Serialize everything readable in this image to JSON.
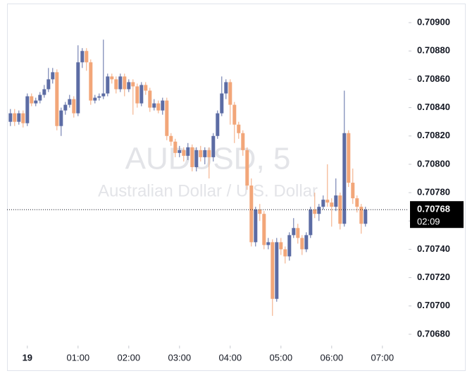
{
  "chart_data": {
    "type": "candlestick",
    "watermark": [
      "AUDUSD, 5",
      "Australian Dollar / U.S. Dollar"
    ],
    "x": [
      "23:40",
      "23:45",
      "23:50",
      "23:55",
      "00:00",
      "00:05",
      "00:10",
      "00:15",
      "00:20",
      "00:25",
      "00:30",
      "00:35",
      "00:40",
      "00:45",
      "00:50",
      "00:55",
      "01:00",
      "01:05",
      "01:10",
      "01:15",
      "01:20",
      "01:25",
      "01:30",
      "01:35",
      "01:40",
      "01:45",
      "01:50",
      "01:55",
      "02:00",
      "02:05",
      "02:10",
      "02:15",
      "02:20",
      "02:25",
      "02:30",
      "02:35",
      "02:40",
      "02:45",
      "02:50",
      "02:55",
      "03:00",
      "03:05",
      "03:10",
      "03:15",
      "03:20",
      "03:25",
      "03:30",
      "03:35",
      "03:40",
      "03:45",
      "03:50",
      "03:55",
      "04:00",
      "04:05",
      "04:10",
      "04:15",
      "04:20",
      "04:25",
      "04:30",
      "04:35",
      "04:40",
      "04:45",
      "04:50",
      "04:55",
      "05:00",
      "05:05",
      "05:10",
      "05:15",
      "05:20",
      "05:25",
      "05:30",
      "05:35",
      "05:40",
      "05:45",
      "05:50",
      "05:55",
      "06:00",
      "06:05",
      "06:10",
      "06:15",
      "06:20",
      "06:25",
      "06:30",
      "06:35",
      "06:40"
    ],
    "open": [
      0.7083,
      0.70836,
      0.7083,
      0.70836,
      0.70829,
      0.70848,
      0.70843,
      0.70845,
      0.70849,
      0.70853,
      0.7086,
      0.70865,
      0.70827,
      0.70838,
      0.70842,
      0.70846,
      0.70836,
      0.70872,
      0.7088,
      0.70872,
      0.70845,
      0.70847,
      0.70848,
      0.7085,
      0.70862,
      0.7086,
      0.70853,
      0.70862,
      0.70853,
      0.70858,
      0.70855,
      0.70843,
      0.70856,
      0.70852,
      0.7084,
      0.70843,
      0.70838,
      0.70845,
      0.7082,
      0.70816,
      0.70808,
      0.7081,
      0.70806,
      0.70812,
      0.70798,
      0.7081,
      0.70805,
      0.7081,
      0.70805,
      0.7082,
      0.70836,
      0.7085,
      0.70858,
      0.70842,
      0.70828,
      0.70822,
      0.7081,
      0.70785,
      0.70745,
      0.70768,
      0.70765,
      0.70743,
      0.70745,
      0.70705,
      0.70745,
      0.7074,
      0.70735,
      0.7075,
      0.70755,
      0.70748,
      0.7074,
      0.7075,
      0.70768,
      0.70765,
      0.7077,
      0.70775,
      0.70773,
      0.7077,
      0.70778,
      0.70758,
      0.70822,
      0.70787,
      0.70776,
      0.7077,
      0.70758
    ],
    "high": [
      0.70839,
      0.70839,
      0.70838,
      0.70838,
      0.7085,
      0.7085,
      0.70847,
      0.70851,
      0.70856,
      0.70868,
      0.70868,
      0.70867,
      0.7084,
      0.70844,
      0.70849,
      0.70848,
      0.70884,
      0.70882,
      0.70882,
      0.70874,
      0.70849,
      0.7085,
      0.70888,
      0.70864,
      0.70864,
      0.70862,
      0.70864,
      0.70864,
      0.7086,
      0.7086,
      0.70857,
      0.70858,
      0.70858,
      0.70854,
      0.70846,
      0.70845,
      0.70847,
      0.70847,
      0.70822,
      0.70818,
      0.70813,
      0.70812,
      0.70815,
      0.70814,
      0.70812,
      0.70813,
      0.70812,
      0.70812,
      0.70822,
      0.70838,
      0.70862,
      0.7086,
      0.7086,
      0.70844,
      0.7083,
      0.70824,
      0.70812,
      0.7079,
      0.7077,
      0.70772,
      0.70767,
      0.70748,
      0.70747,
      0.70748,
      0.70748,
      0.70742,
      0.70752,
      0.70762,
      0.70758,
      0.7075,
      0.70752,
      0.7077,
      0.7078,
      0.70772,
      0.70778,
      0.708,
      0.70776,
      0.7079,
      0.7078,
      0.70852,
      0.70824,
      0.70797,
      0.70778,
      0.70772,
      0.7077
    ],
    "low": [
      0.70827,
      0.70827,
      0.70828,
      0.70826,
      0.70827,
      0.70841,
      0.70841,
      0.70843,
      0.70847,
      0.70851,
      0.70857,
      0.70824,
      0.7082,
      0.70835,
      0.7084,
      0.70833,
      0.70834,
      0.70868,
      0.70866,
      0.70842,
      0.70843,
      0.70845,
      0.70846,
      0.70848,
      0.70857,
      0.7085,
      0.70851,
      0.70848,
      0.70851,
      0.70835,
      0.7084,
      0.70841,
      0.70849,
      0.70837,
      0.70838,
      0.70836,
      0.70835,
      0.70817,
      0.70813,
      0.70805,
      0.70805,
      0.70802,
      0.70803,
      0.70795,
      0.70795,
      0.70802,
      0.708,
      0.7079,
      0.70802,
      0.70818,
      0.70834,
      0.70846,
      0.70828,
      0.70815,
      0.70818,
      0.70806,
      0.70782,
      0.70742,
      0.70742,
      0.7076,
      0.7074,
      0.7074,
      0.70693,
      0.70703,
      0.70736,
      0.7073,
      0.70732,
      0.70748,
      0.70744,
      0.70736,
      0.70738,
      0.70748,
      0.70762,
      0.7076,
      0.70768,
      0.7077,
      0.70756,
      0.70767,
      0.70754,
      0.70756,
      0.70784,
      0.70772,
      0.70766,
      0.70751,
      0.70756
    ],
    "close": [
      0.70836,
      0.7083,
      0.70836,
      0.70829,
      0.70848,
      0.70843,
      0.70845,
      0.70849,
      0.70853,
      0.7086,
      0.70865,
      0.70827,
      0.70838,
      0.70842,
      0.70846,
      0.70836,
      0.70872,
      0.7088,
      0.70872,
      0.70845,
      0.70847,
      0.70848,
      0.7085,
      0.70862,
      0.7086,
      0.70853,
      0.70862,
      0.70853,
      0.70858,
      0.70855,
      0.70843,
      0.70856,
      0.70852,
      0.7084,
      0.70843,
      0.70838,
      0.70845,
      0.7082,
      0.70816,
      0.70808,
      0.7081,
      0.70806,
      0.70812,
      0.70798,
      0.7081,
      0.70805,
      0.7081,
      0.70805,
      0.7082,
      0.70836,
      0.7085,
      0.70858,
      0.70842,
      0.70828,
      0.70822,
      0.7081,
      0.70785,
      0.70745,
      0.70768,
      0.70765,
      0.70743,
      0.70745,
      0.70705,
      0.70745,
      0.7074,
      0.70735,
      0.7075,
      0.70755,
      0.70748,
      0.7074,
      0.7075,
      0.70768,
      0.70765,
      0.7077,
      0.70775,
      0.70773,
      0.7077,
      0.70778,
      0.70758,
      0.70822,
      0.70787,
      0.70776,
      0.7077,
      0.70758,
      0.70768
    ],
    "up_color": "#5c6ca4",
    "down_color": "#f2a679",
    "last_price": {
      "value": 0.70768,
      "label": "0.70768"
    },
    "countdown": "02:09",
    "xlim": [
      "23:36",
      "07:31"
    ],
    "xticks": [
      {
        "value": "00:00",
        "label": "19"
      },
      "01:00",
      "02:00",
      "03:00",
      "04:00",
      "05:00",
      "06:00",
      "07:00"
    ],
    "ylim": [
      0.70672,
      0.70911
    ],
    "yticks": [
      {
        "value": 0.7068,
        "label": "0.70680"
      },
      {
        "value": 0.707,
        "label": "0.70700"
      },
      {
        "value": 0.7072,
        "label": "0.70720"
      },
      {
        "value": 0.7074,
        "label": "0.70740"
      },
      {
        "value": 0.7076,
        "label": "0.70760"
      },
      {
        "value": 0.7078,
        "label": "0.70780"
      },
      {
        "value": 0.708,
        "label": "0.70800"
      },
      {
        "value": 0.7082,
        "label": "0.70820"
      },
      {
        "value": 0.7084,
        "label": "0.70840"
      },
      {
        "value": 0.7086,
        "label": "0.70860"
      },
      {
        "value": 0.7088,
        "label": "0.70880"
      },
      {
        "value": 0.709,
        "label": "0.70900"
      }
    ]
  }
}
